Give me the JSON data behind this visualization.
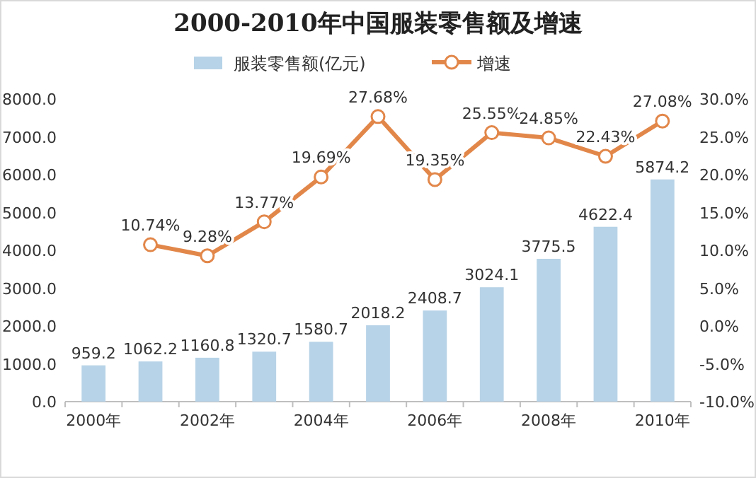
{
  "chart_data": {
    "type": "bar",
    "title": "2000-2010年中国服装零售额及增速",
    "categories": [
      "2000年",
      null,
      "2002年",
      null,
      "2004年",
      null,
      "2006年",
      null,
      "2008年",
      null,
      "2010年"
    ],
    "series": [
      {
        "name": "服装零售额(亿元)",
        "color": "#b7d3e7",
        "values": [
          959.2,
          1062.2,
          1160.8,
          1320.7,
          1580.7,
          2018.2,
          2408.7,
          3024.1,
          3775.5,
          4622.4,
          5874.2
        ],
        "value_labels": [
          "959.2",
          "1062.2",
          "1160.8",
          "1320.7",
          "1580.7",
          "2018.2",
          "2408.7",
          "3024.1",
          "3775.5",
          "4622.4",
          "5874.2"
        ]
      },
      {
        "name": "增速",
        "type": "line",
        "axis": "y2",
        "color": "#e2874a",
        "marker": "circle",
        "values": [
          null,
          10.74,
          9.28,
          13.77,
          19.69,
          27.68,
          19.35,
          25.55,
          24.85,
          22.43,
          27.08
        ],
        "value_labels": [
          null,
          "10.74%",
          "9.28%",
          "13.77%",
          "19.69%",
          "27.68%",
          "19.35%",
          "25.55%",
          "24.85%",
          "22.43%",
          "27.08%"
        ]
      }
    ],
    "ylim": [
      0,
      8000
    ],
    "yticks": [
      {
        "value": 0,
        "label": "0.0"
      },
      {
        "value": 1000,
        "label": "1000.0"
      },
      {
        "value": 2000,
        "label": "2000.0"
      },
      {
        "value": 3000,
        "label": "3000.0"
      },
      {
        "value": 4000,
        "label": "4000.0"
      },
      {
        "value": 5000,
        "label": "5000.0"
      },
      {
        "value": 6000,
        "label": "6000.0"
      },
      {
        "value": 7000,
        "label": "7000.0"
      },
      {
        "value": 8000,
        "label": "8000.0"
      }
    ],
    "y2lim": [
      -10,
      30
    ],
    "y2ticks": [
      {
        "value": -10,
        "label": "-10.0%"
      },
      {
        "value": -5,
        "label": "-5.0%"
      },
      {
        "value": 0,
        "label": "0.0%"
      },
      {
        "value": 5,
        "label": "5.0%"
      },
      {
        "value": 10,
        "label": "10.0%"
      },
      {
        "value": 15,
        "label": "15.0%"
      },
      {
        "value": 20,
        "label": "20.0%"
      },
      {
        "value": 25,
        "label": "25.0%"
      },
      {
        "value": 30,
        "label": "30.0%"
      }
    ],
    "legend": "top"
  }
}
